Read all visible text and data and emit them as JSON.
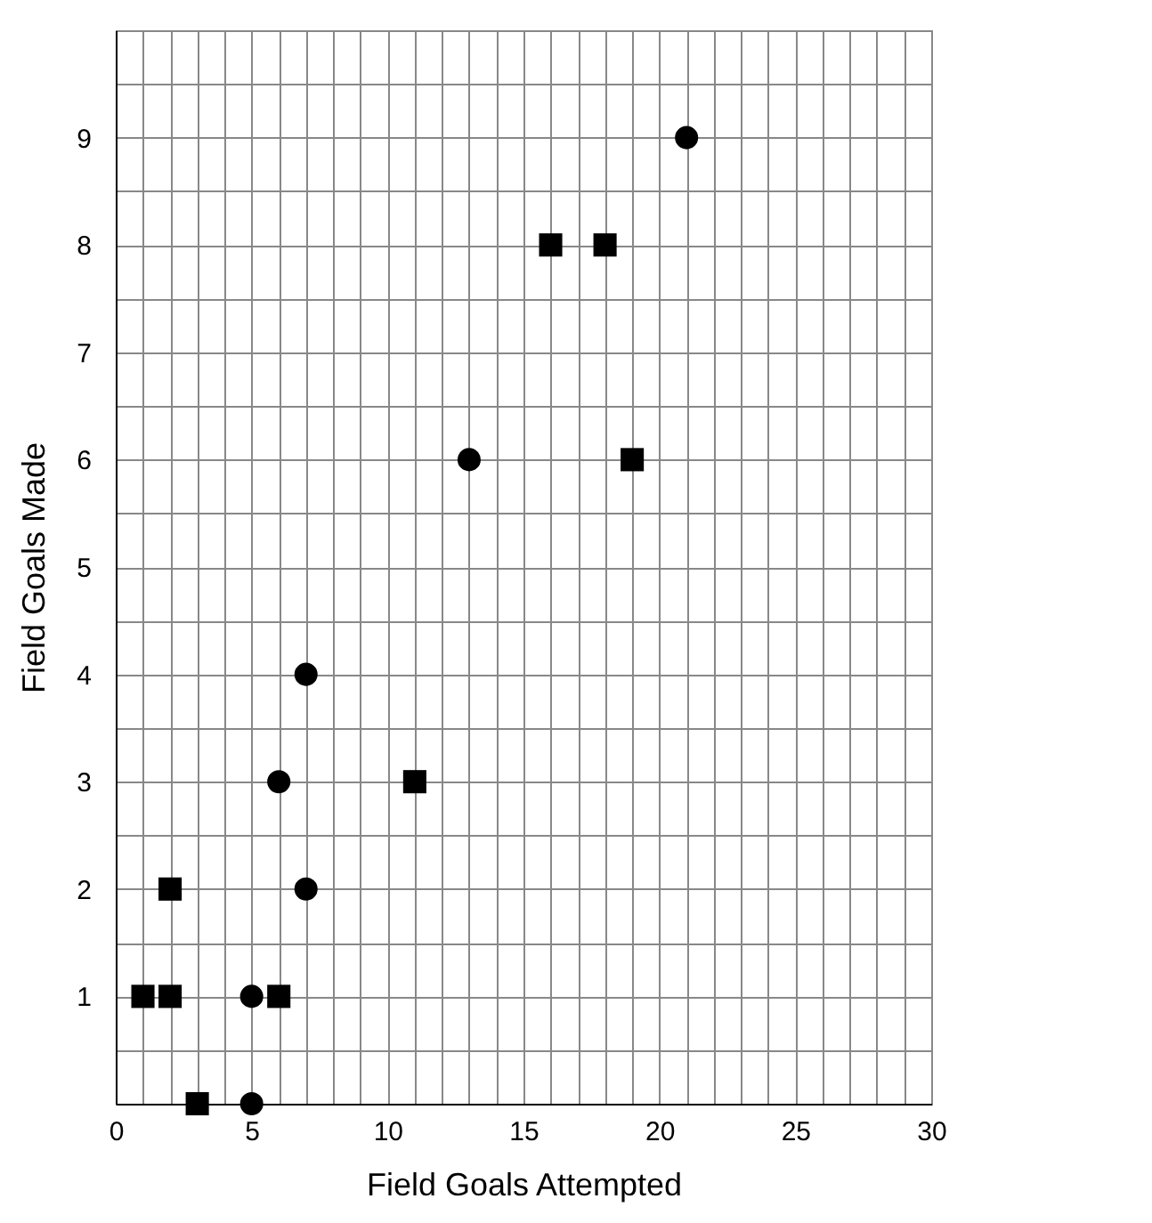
{
  "chart_data": {
    "type": "scatter",
    "xlabel": "Field Goals Attempted",
    "ylabel": "Field Goals Made",
    "xlim": [
      0,
      30
    ],
    "ylim": [
      0,
      10
    ],
    "xticks": [
      0,
      {
        "value": 1,
        "label": null
      },
      {
        "value": 2,
        "label": null
      },
      {
        "value": 3,
        "label": null
      },
      {
        "value": 4,
        "label": null
      },
      5,
      {
        "value": 6,
        "label": null
      },
      {
        "value": 7,
        "label": null
      },
      {
        "value": 8,
        "label": null
      },
      {
        "value": 9,
        "label": null
      },
      10,
      {
        "value": 11,
        "label": null
      },
      {
        "value": 12,
        "label": null
      },
      {
        "value": 13,
        "label": null
      },
      {
        "value": 14,
        "label": null
      },
      15,
      {
        "value": 16,
        "label": null
      },
      {
        "value": 17,
        "label": null
      },
      {
        "value": 18,
        "label": null
      },
      {
        "value": 19,
        "label": null
      },
      20,
      {
        "value": 21,
        "label": null
      },
      {
        "value": 22,
        "label": null
      },
      {
        "value": 23,
        "label": null
      },
      {
        "value": 24,
        "label": null
      },
      25,
      {
        "value": 26,
        "label": null
      },
      {
        "value": 27,
        "label": null
      },
      {
        "value": 28,
        "label": null
      },
      {
        "value": 29,
        "label": null
      },
      30
    ],
    "yticks": [
      {
        "value": 0,
        "label": null
      },
      {
        "value": 0.5,
        "label": null
      },
      1,
      {
        "value": 1.5,
        "label": null
      },
      2,
      {
        "value": 2.5,
        "label": null
      },
      3,
      {
        "value": 3.5,
        "label": null
      },
      4,
      {
        "value": 4.5,
        "label": null
      },
      5,
      {
        "value": 5.5,
        "label": null
      },
      6,
      {
        "value": 6.5,
        "label": null
      },
      7,
      {
        "value": 7.5,
        "label": null
      },
      8,
      {
        "value": 8.5,
        "label": null
      },
      9,
      {
        "value": 9.5,
        "label": null
      },
      {
        "value": 10,
        "label": null
      }
    ],
    "grid": true,
    "series": [
      {
        "color": "#000000",
        "marker": "circle",
        "x": [
          21,
          13,
          7,
          6,
          7,
          5,
          5
        ],
        "values": [
          9,
          6,
          4,
          3,
          2,
          1,
          0
        ]
      },
      {
        "color": "#000000",
        "marker": "square",
        "x": [
          16,
          18,
          19,
          11,
          2,
          1,
          2,
          6,
          3
        ],
        "values": [
          8,
          8,
          6,
          3,
          2,
          1,
          1,
          1,
          0
        ]
      }
    ]
  }
}
